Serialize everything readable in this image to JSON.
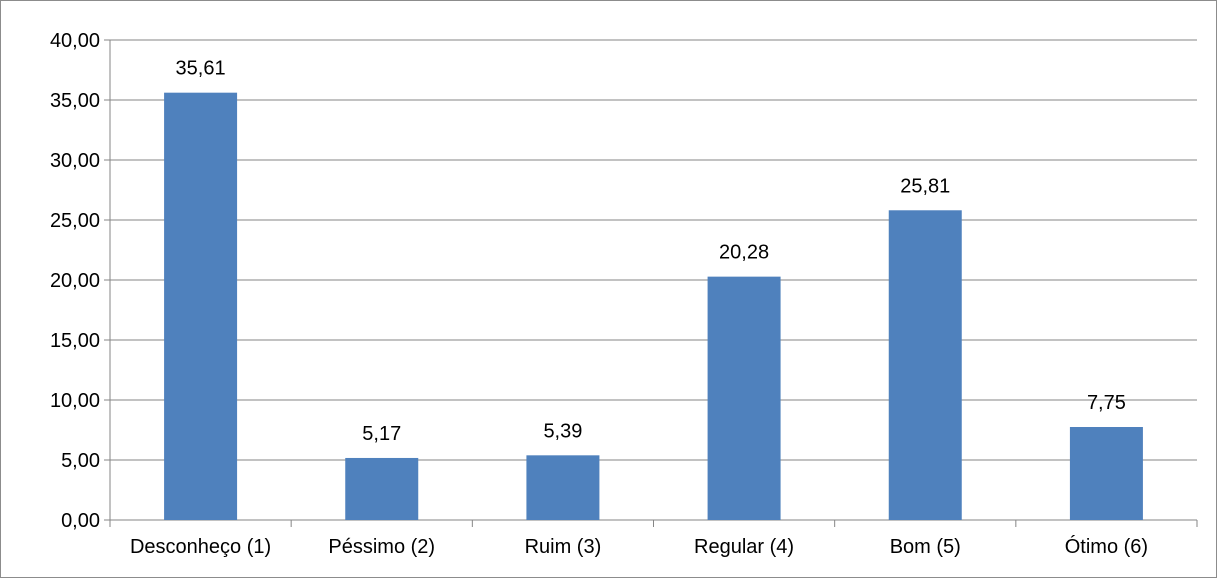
{
  "chart_data": {
    "type": "bar",
    "categories": [
      "Desconheço (1)",
      "Péssimo (2)",
      "Ruim (3)",
      "Regular (4)",
      "Bom (5)",
      "Ótimo (6)"
    ],
    "values": [
      35.61,
      5.17,
      5.39,
      20.28,
      25.81,
      7.75
    ],
    "data_labels": [
      "35,61",
      "5,17",
      "5,39",
      "20,28",
      "25,81",
      "7,75"
    ],
    "y_ticks": [
      "0,00",
      "5,00",
      "10,00",
      "15,00",
      "20,00",
      "25,00",
      "30,00",
      "35,00",
      "40,00"
    ],
    "ylim": [
      0,
      40
    ],
    "y_step": 5,
    "grid": true,
    "legend": "none",
    "bar_color": "#4f81bd",
    "gridline_color": "#868686",
    "title": "",
    "xlabel": "",
    "ylabel": ""
  }
}
